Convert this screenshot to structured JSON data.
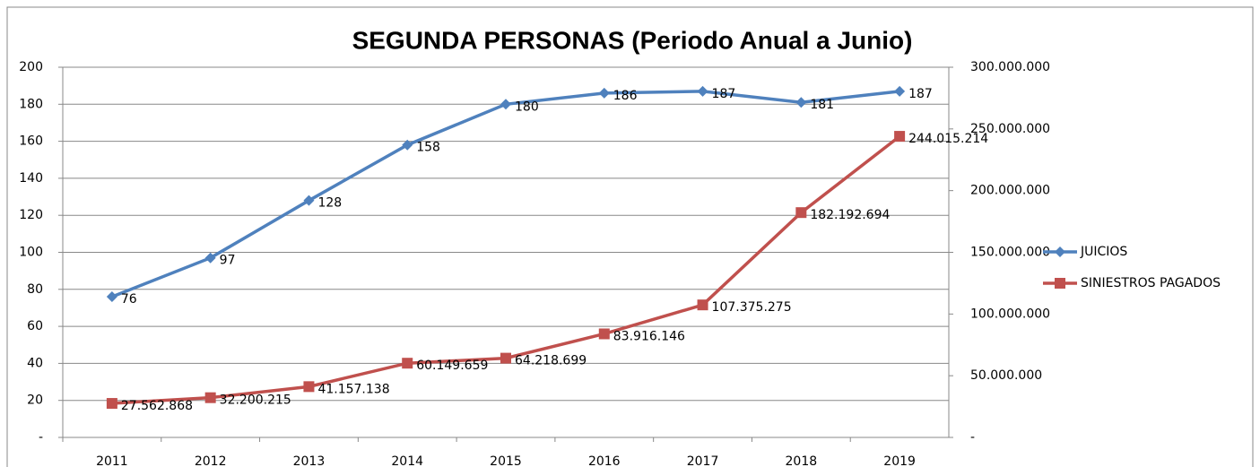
{
  "chart_data": {
    "type": "line",
    "title": "SEGUNDA PERSONAS (Periodo Anual a Junio)",
    "categories": [
      "2011",
      "2012",
      "2013",
      "2014",
      "2015",
      "2016",
      "2017",
      "2018",
      "2019"
    ],
    "series": [
      {
        "name": "JUICIOS",
        "color": "#4f81bd",
        "marker": "diamond",
        "values": [
          76,
          97,
          128,
          158,
          180,
          186,
          187,
          181,
          187
        ]
      },
      {
        "name": "SINIESTROS PAGADOS",
        "color": "#c0504d",
        "marker": "square",
        "axis": "y2",
        "values": [
          27562868,
          32200215,
          41157138,
          60149659,
          64218699,
          83916146,
          107375275,
          182192694,
          244015214
        ],
        "value_labels": [
          "27.562.868",
          "32.200.215",
          "41.157.138",
          "60.149.659",
          "64.218.699",
          "83.916.146",
          "107.375.275",
          "182.192.694",
          "244.015.214"
        ]
      }
    ],
    "ylim": [
      0,
      200
    ],
    "yticks": [
      {
        "value": 0,
        "label": "-"
      },
      20,
      40,
      60,
      80,
      100,
      120,
      140,
      160,
      180,
      200
    ],
    "y2lim": [
      0,
      300000000
    ],
    "y2ticks": [
      {
        "value": 0,
        "label": "-"
      },
      {
        "value": 50000000,
        "label": "50.000.000"
      },
      {
        "value": 100000000,
        "label": "100.000.000"
      },
      {
        "value": 150000000,
        "label": "150.000.000"
      },
      {
        "value": 200000000,
        "label": "200.000.000"
      },
      {
        "value": 250000000,
        "label": "250.000.000"
      },
      {
        "value": 300000000,
        "label": "300.000.000"
      }
    ],
    "grid": true,
    "legend": "right"
  }
}
